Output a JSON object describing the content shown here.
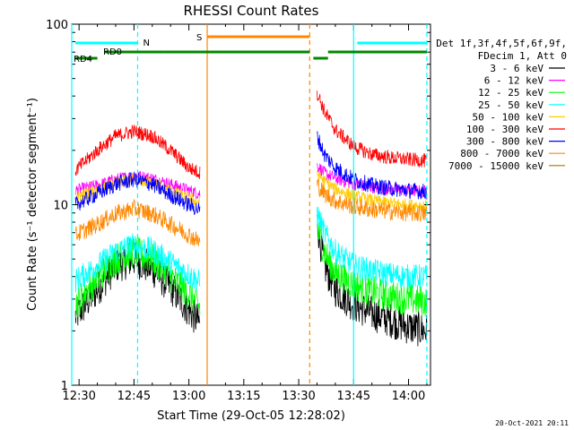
{
  "chart_data": {
    "type": "line",
    "title": "RHESSI Count Rates",
    "xlabel": "Start Time (29-Oct-05 12:28:02)",
    "ylabel": "Count Rate (s⁻¹ detector segment⁻¹)",
    "y_scale": "log",
    "ylim": [
      1,
      100
    ],
    "xlim": [
      "12:28",
      "14:06"
    ],
    "x_ticks": [
      "12:30",
      "12:45",
      "13:00",
      "13:15",
      "13:30",
      "13:45",
      "14:00"
    ],
    "y_ticks": [
      "1",
      "10",
      "100"
    ],
    "legend_header": [
      "Det 1f,3f,4f,5f,6f,9f,",
      "FDecim 1, Att 0"
    ],
    "legend_position": "right-outside",
    "timestamp": "20-Oct-2021 20:11",
    "data_gap": [
      "13:04",
      "13:34"
    ],
    "series": [
      {
        "name": "3 - 6 keV",
        "color": "#000000",
        "points": [
          [
            "12:29",
            2.4
          ],
          [
            "12:35",
            3.4
          ],
          [
            "12:40",
            4.6
          ],
          [
            "12:45",
            5.0
          ],
          [
            "12:50",
            4.4
          ],
          [
            "12:55",
            3.5
          ],
          [
            "13:00",
            2.6
          ],
          [
            "13:03",
            2.2
          ],
          [
            "13:35",
            8.0
          ],
          [
            "13:37",
            4.6
          ],
          [
            "13:40",
            3.4
          ],
          [
            "13:45",
            2.8
          ],
          [
            "13:50",
            2.5
          ],
          [
            "13:55",
            2.3
          ],
          [
            "14:00",
            2.1
          ],
          [
            "14:05",
            2.0
          ]
        ]
      },
      {
        "name": "6 - 12 keV",
        "color": "#ff00ff",
        "points": [
          [
            "12:29",
            12.0
          ],
          [
            "12:35",
            12.8
          ],
          [
            "12:40",
            13.8
          ],
          [
            "12:45",
            14.5
          ],
          [
            "12:50",
            14.0
          ],
          [
            "12:55",
            13.0
          ],
          [
            "13:00",
            12.0
          ],
          [
            "13:03",
            11.5
          ],
          [
            "13:35",
            16.5
          ],
          [
            "13:37",
            15.0
          ],
          [
            "13:40",
            14.0
          ],
          [
            "13:45",
            13.0
          ],
          [
            "13:50",
            12.5
          ],
          [
            "13:55",
            12.2
          ],
          [
            "14:00",
            12.0
          ],
          [
            "14:05",
            11.8
          ]
        ]
      },
      {
        "name": "12 - 25 keV",
        "color": "#00ff00",
        "points": [
          [
            "12:29",
            2.8
          ],
          [
            "12:35",
            3.9
          ],
          [
            "12:40",
            5.0
          ],
          [
            "12:45",
            5.5
          ],
          [
            "12:50",
            5.0
          ],
          [
            "12:55",
            4.0
          ],
          [
            "13:00",
            3.2
          ],
          [
            "13:03",
            2.7
          ],
          [
            "13:35",
            7.5
          ],
          [
            "13:37",
            5.5
          ],
          [
            "13:40",
            4.2
          ],
          [
            "13:45",
            3.6
          ],
          [
            "13:50",
            3.3
          ],
          [
            "13:55",
            3.1
          ],
          [
            "14:00",
            3.0
          ],
          [
            "14:05",
            2.9
          ]
        ]
      },
      {
        "name": "25 - 50 keV",
        "color": "#00ffff",
        "points": [
          [
            "12:29",
            3.8
          ],
          [
            "12:35",
            4.6
          ],
          [
            "12:40",
            5.5
          ],
          [
            "12:45",
            6.0
          ],
          [
            "12:50",
            5.6
          ],
          [
            "12:55",
            4.8
          ],
          [
            "13:00",
            4.1
          ],
          [
            "13:03",
            3.7
          ],
          [
            "13:35",
            9.0
          ],
          [
            "13:37",
            7.0
          ],
          [
            "13:40",
            5.5
          ],
          [
            "13:45",
            4.6
          ],
          [
            "13:50",
            4.3
          ],
          [
            "13:55",
            4.1
          ],
          [
            "14:00",
            4.0
          ],
          [
            "14:05",
            4.0
          ]
        ]
      },
      {
        "name": "50 - 100 keV",
        "color": "#ffcc00",
        "points": [
          [
            "12:29",
            11.0
          ],
          [
            "12:35",
            12.0
          ],
          [
            "12:40",
            13.2
          ],
          [
            "12:45",
            13.8
          ],
          [
            "12:50",
            13.2
          ],
          [
            "12:55",
            12.0
          ],
          [
            "13:00",
            10.8
          ],
          [
            "13:03",
            10.3
          ],
          [
            "13:35",
            15.0
          ],
          [
            "13:37",
            13.5
          ],
          [
            "13:40",
            12.2
          ],
          [
            "13:45",
            11.2
          ],
          [
            "13:50",
            10.6
          ],
          [
            "13:55",
            10.2
          ],
          [
            "14:00",
            10.0
          ],
          [
            "14:05",
            9.8
          ]
        ]
      },
      {
        "name": "100 - 300 keV",
        "color": "#ff0000",
        "points": [
          [
            "12:29",
            15.5
          ],
          [
            "12:35",
            20.0
          ],
          [
            "12:40",
            24.0
          ],
          [
            "12:45",
            25.5
          ],
          [
            "12:50",
            24.0
          ],
          [
            "12:55",
            20.0
          ],
          [
            "13:00",
            16.0
          ],
          [
            "13:03",
            15.0
          ],
          [
            "13:35",
            42.0
          ],
          [
            "13:37",
            33.0
          ],
          [
            "13:40",
            26.0
          ],
          [
            "13:45",
            21.0
          ],
          [
            "13:50",
            19.0
          ],
          [
            "13:55",
            18.2
          ],
          [
            "14:00",
            17.8
          ],
          [
            "14:05",
            17.5
          ]
        ]
      },
      {
        "name": "300 - 800 keV",
        "color": "#0000ff",
        "points": [
          [
            "12:29",
            10.0
          ],
          [
            "12:35",
            11.5
          ],
          [
            "12:40",
            13.0
          ],
          [
            "12:45",
            13.8
          ],
          [
            "12:50",
            13.0
          ],
          [
            "12:55",
            11.3
          ],
          [
            "13:00",
            10.0
          ],
          [
            "13:03",
            9.3
          ],
          [
            "13:35",
            24.0
          ],
          [
            "13:37",
            19.0
          ],
          [
            "13:40",
            16.0
          ],
          [
            "13:45",
            13.8
          ],
          [
            "13:50",
            12.8
          ],
          [
            "13:55",
            12.3
          ],
          [
            "14:00",
            12.0
          ],
          [
            "14:05",
            11.8
          ]
        ]
      },
      {
        "name": "800 - 7000 keV",
        "color": "#ff8800",
        "points": [
          [
            "12:29",
            6.8
          ],
          [
            "12:35",
            7.8
          ],
          [
            "12:40",
            8.9
          ],
          [
            "12:45",
            9.5
          ],
          [
            "12:50",
            8.9
          ],
          [
            "12:55",
            7.8
          ],
          [
            "13:00",
            6.8
          ],
          [
            "13:03",
            6.2
          ],
          [
            "13:35",
            13.0
          ],
          [
            "13:37",
            11.5
          ],
          [
            "13:40",
            10.5
          ],
          [
            "13:45",
            9.8
          ],
          [
            "13:50",
            9.4
          ],
          [
            "13:55",
            9.2
          ],
          [
            "14:00",
            9.0
          ],
          [
            "14:05",
            8.9
          ]
        ]
      },
      {
        "name": "7000 - 15000 keV",
        "color": "#aa7700",
        "points": []
      }
    ],
    "annotations": {
      "n_label": "N",
      "s_label": "S",
      "rd0_label": "RD0",
      "rd4_label": "RD4",
      "cyan_bars": [
        [
          "12:29",
          "12:46"
        ],
        [
          "13:46",
          "14:05"
        ]
      ],
      "orange_bar": [
        "13:05",
        "13:33"
      ],
      "green_bars": [
        [
          "12:29",
          "12:35"
        ],
        [
          "12:37",
          "12:53"
        ],
        [
          "12:53",
          "13:33"
        ],
        [
          "13:34",
          "13:38"
        ],
        [
          "13:38",
          "14:05"
        ]
      ],
      "vlines_solid_cyan": [
        "12:28",
        "13:45"
      ],
      "vlines_dashed_cyan": [
        "12:46",
        "14:05"
      ],
      "vline_solid_orange": "13:05",
      "vline_dashed_orange": "13:33"
    }
  }
}
